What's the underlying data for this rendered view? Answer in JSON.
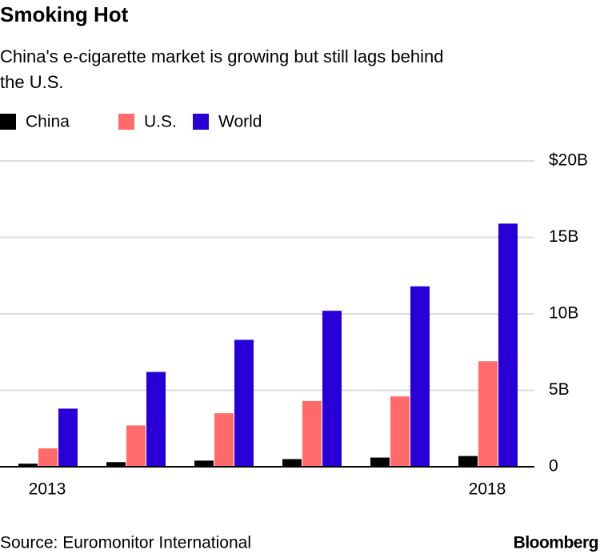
{
  "chart_data": {
    "type": "bar",
    "title": "Smoking Hot",
    "subtitle": [
      "China's e-cigarette market is growing but still lags behind",
      "the U.S."
    ],
    "categories": [
      "2013",
      null,
      null,
      null,
      null,
      "2018"
    ],
    "series": [
      {
        "name": "China",
        "color": "#000000",
        "values": [
          0.2,
          0.3,
          0.4,
          0.5,
          0.6,
          0.7
        ]
      },
      {
        "name": "U.S.",
        "color": "#ff6a6a",
        "values": [
          1.2,
          2.7,
          3.5,
          4.3,
          4.6,
          6.9
        ]
      },
      {
        "name": "World",
        "color": "#2800d7",
        "values": [
          3.8,
          6.2,
          8.3,
          10.2,
          11.8,
          15.9
        ]
      }
    ],
    "ylim": [
      0,
      20
    ],
    "yticks": [
      0,
      {
        "value": 5,
        "label": "5B"
      },
      {
        "value": 10,
        "label": "10B"
      },
      {
        "value": 15,
        "label": "15B"
      },
      {
        "value": 20,
        "label": "$20B"
      }
    ],
    "grid": true,
    "source": "Source: Euromonitor International",
    "brand": "Bloomberg"
  }
}
